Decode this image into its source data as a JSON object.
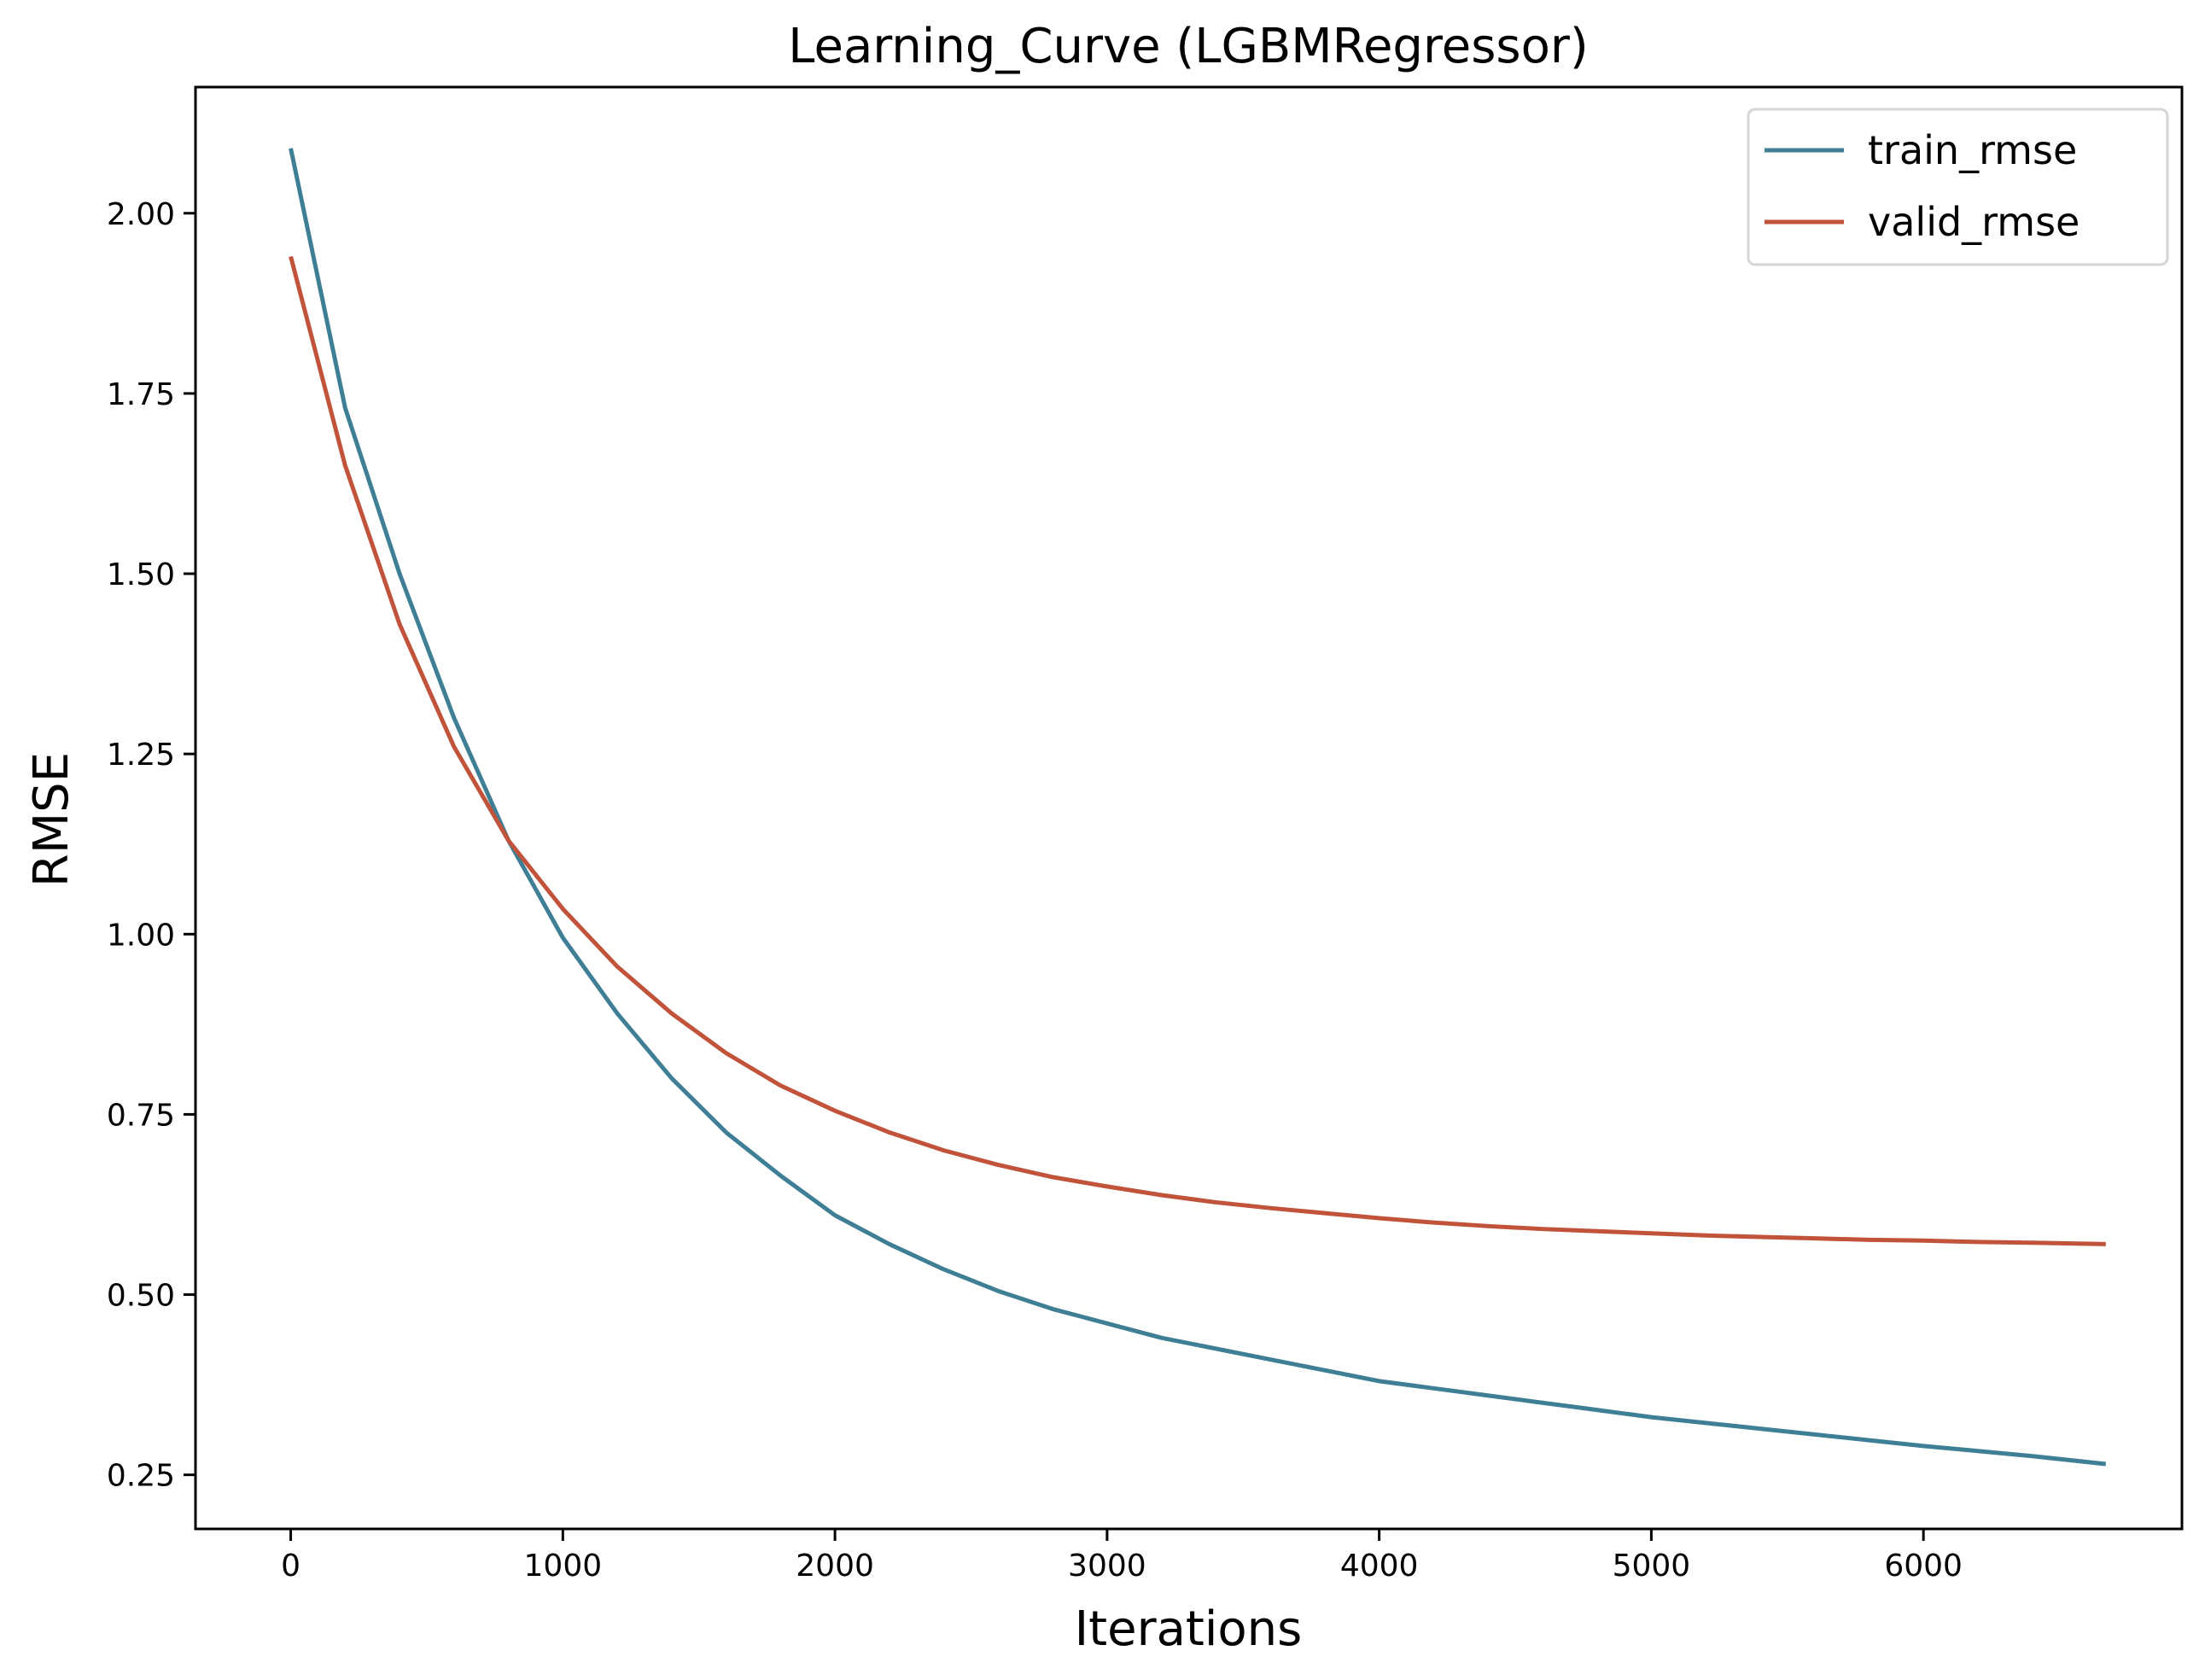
{
  "chart_data": {
    "type": "line",
    "title": "Learning_Curve (LGBMRegressor)",
    "xlabel": "Iterations",
    "ylabel": "RMSE",
    "xlim": [
      -350,
      6950
    ],
    "ylim": [
      0.175,
      2.175
    ],
    "x_ticks": [
      0,
      1000,
      2000,
      3000,
      4000,
      5000,
      6000
    ],
    "x_tick_labels": [
      "0",
      "1000",
      "2000",
      "3000",
      "4000",
      "5000",
      "6000"
    ],
    "y_ticks": [
      0.25,
      0.5,
      0.75,
      1.0,
      1.25,
      1.5,
      1.75,
      2.0
    ],
    "y_tick_labels": [
      "0.25",
      "0.50",
      "0.75",
      "1.00",
      "1.25",
      "1.50",
      "1.75",
      "2.00"
    ],
    "grid": false,
    "legend_position": "top-right",
    "x": [
      0,
      200,
      400,
      600,
      800,
      1000,
      1200,
      1400,
      1600,
      1800,
      2000,
      2200,
      2400,
      2600,
      2800,
      3000,
      3200,
      3400,
      3600,
      3800,
      4000,
      4200,
      4400,
      4600,
      4800,
      5000,
      5200,
      5400,
      5600,
      5800,
      6000,
      6200,
      6400,
      6670
    ],
    "series": [
      {
        "name": "train_rmse",
        "color": "#3f7f95",
        "values": [
          2.09,
          1.73,
          1.5,
          1.3,
          1.13,
          0.995,
          0.89,
          0.8,
          0.725,
          0.665,
          0.61,
          0.57,
          0.535,
          0.505,
          0.48,
          0.46,
          0.44,
          0.425,
          0.41,
          0.395,
          0.38,
          0.37,
          0.36,
          0.35,
          0.34,
          0.33,
          0.322,
          0.314,
          0.306,
          0.298,
          0.29,
          0.283,
          0.276,
          0.265
        ]
      },
      {
        "name": "valid_rmse",
        "color": "#c0533a",
        "values": [
          1.94,
          1.65,
          1.43,
          1.26,
          1.13,
          1.035,
          0.955,
          0.89,
          0.835,
          0.79,
          0.755,
          0.725,
          0.7,
          0.68,
          0.663,
          0.65,
          0.638,
          0.628,
          0.62,
          0.613,
          0.606,
          0.6,
          0.595,
          0.591,
          0.588,
          0.585,
          0.582,
          0.58,
          0.578,
          0.576,
          0.575,
          0.573,
          0.572,
          0.57
        ]
      }
    ]
  }
}
